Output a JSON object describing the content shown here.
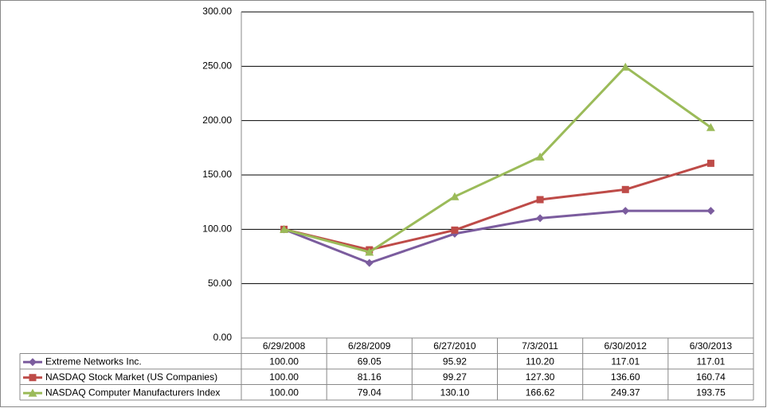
{
  "chart_data": {
    "type": "line",
    "categories": [
      "6/29/2008",
      "6/28/2009",
      "6/27/2010",
      "7/3/2011",
      "6/30/2012",
      "6/30/2013"
    ],
    "series": [
      {
        "name": "Extreme Networks Inc.",
        "color": "#7b5c9e",
        "marker": "diamond",
        "values": [
          100,
          69.05,
          95.92,
          110.2,
          117.01,
          117.01
        ],
        "value_labels": [
          "100.00",
          "69.05",
          "95.92",
          "110.20",
          "117.01",
          "117.01"
        ]
      },
      {
        "name": "NASDAQ Stock Market (US Companies)",
        "color": "#be4b48",
        "marker": "square",
        "values": [
          100,
          81.16,
          99.27,
          127.3,
          136.6,
          160.74
        ],
        "value_labels": [
          "100.00",
          "81.16",
          "99.27",
          "127.30",
          "136.60",
          "160.74"
        ]
      },
      {
        "name": "NASDAQ Computer Manufacturers Index",
        "color": "#9bbb59",
        "marker": "triangle",
        "values": [
          100,
          79.04,
          130.1,
          166.62,
          249.37,
          193.75
        ],
        "value_labels": [
          "100.00",
          "79.04",
          "130.10",
          "166.62",
          "249.37",
          "193.75"
        ]
      }
    ],
    "ylim": [
      0,
      300
    ],
    "yticks": [
      {
        "value": 0,
        "label": "0.00"
      },
      {
        "value": 50,
        "label": "50.00"
      },
      {
        "value": 100,
        "label": "100.00"
      },
      {
        "value": 150,
        "label": "150.00"
      },
      {
        "value": 200,
        "label": "200.00"
      },
      {
        "value": 250,
        "label": "250.00"
      },
      {
        "value": 300,
        "label": "300.00"
      }
    ],
    "grid": true
  }
}
